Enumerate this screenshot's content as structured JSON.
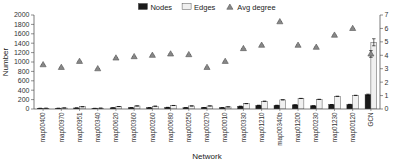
{
  "chart_data": {
    "type": "bar",
    "x_label": "Network",
    "y_label": "Number",
    "categories": [
      "map00400",
      "map00970",
      "map00951",
      "map00340",
      "map00620",
      "map00360",
      "map00260",
      "map00680",
      "map00250",
      "map00270",
      "map00010",
      "map00330",
      "map01210",
      "map00340b",
      "map01200",
      "map00230",
      "map01230",
      "map00120",
      "GCN"
    ],
    "series": [
      {
        "name": "Nodes",
        "color": "#1a1a1a",
        "values": [
          14,
          15,
          22,
          13,
          25,
          28,
          28,
          34,
          28,
          30,
          28,
          58,
          78,
          78,
          88,
          68,
          95,
          98,
          305
        ],
        "errors": [
          0,
          0,
          0,
          0,
          0,
          0,
          0,
          0,
          0,
          0,
          0,
          0,
          0,
          0,
          0,
          0,
          0,
          0,
          12
        ]
      },
      {
        "name": "Edges",
        "color": "#f0f0f0",
        "values": [
          16,
          22,
          48,
          18,
          52,
          65,
          60,
          75,
          65,
          65,
          45,
          115,
          165,
          195,
          225,
          205,
          270,
          290,
          1420
        ],
        "errors": [
          0,
          0,
          0,
          0,
          0,
          0,
          0,
          0,
          0,
          0,
          0,
          0,
          0,
          0,
          0,
          0,
          0,
          0,
          75
        ]
      },
      {
        "name": "Avg degree",
        "type": "scatter",
        "marker": "triangle",
        "color": "#888888",
        "axis": "y2",
        "values": [
          3.3,
          3.1,
          3.55,
          3.0,
          3.8,
          3.9,
          4.0,
          4.1,
          4.05,
          3.1,
          3.55,
          4.5,
          4.75,
          6.5,
          4.75,
          4.6,
          5.5,
          6.0,
          4.1
        ],
        "errors": [
          0,
          0,
          0,
          0,
          0,
          0,
          0,
          0,
          0,
          0,
          0,
          0,
          0,
          0,
          0,
          0,
          0,
          0,
          0.25
        ]
      }
    ],
    "ylim": [
      0,
      2000
    ],
    "yticks": [
      0,
      200,
      400,
      600,
      800,
      1000,
      1200,
      1400,
      1600,
      1800,
      2000
    ],
    "y2lim": [
      0,
      7
    ],
    "y2ticks": [
      0,
      1,
      2,
      3,
      4,
      5,
      6,
      7
    ],
    "legend": "top"
  }
}
